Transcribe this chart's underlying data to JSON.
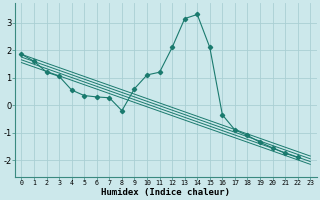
{
  "xlabel": "Humidex (Indice chaleur)",
  "bg_color": "#cce8eb",
  "grid_color": "#aacfd4",
  "line_color": "#1a7a6e",
  "xlim": [
    -0.5,
    23.5
  ],
  "ylim": [
    -2.6,
    3.7
  ],
  "yticks": [
    -2,
    -1,
    0,
    1,
    2,
    3
  ],
  "x_ticks": [
    0,
    1,
    2,
    3,
    4,
    5,
    6,
    7,
    8,
    9,
    10,
    11,
    12,
    13,
    14,
    15,
    16,
    17,
    18,
    19,
    20,
    21,
    22,
    23
  ],
  "curve_x": [
    0,
    1,
    2,
    3,
    4,
    5,
    6,
    7,
    8,
    9,
    10,
    11,
    12,
    13,
    14,
    15,
    16,
    17,
    18,
    19,
    20,
    21,
    22
  ],
  "curve_y": [
    1.85,
    1.6,
    1.2,
    1.05,
    0.55,
    0.35,
    0.3,
    0.27,
    -0.2,
    0.6,
    1.1,
    1.2,
    2.1,
    3.15,
    3.3,
    2.1,
    -0.35,
    -0.9,
    -1.1,
    -1.35,
    -1.55,
    -1.75,
    -1.9
  ],
  "straight_lines": [
    [
      [
        0,
        23
      ],
      [
        1.85,
        -1.85
      ]
    ],
    [
      [
        0,
        23
      ],
      [
        1.75,
        -1.95
      ]
    ],
    [
      [
        0,
        23
      ],
      [
        1.65,
        -2.05
      ]
    ],
    [
      [
        0,
        23
      ],
      [
        1.55,
        -2.15
      ]
    ]
  ]
}
